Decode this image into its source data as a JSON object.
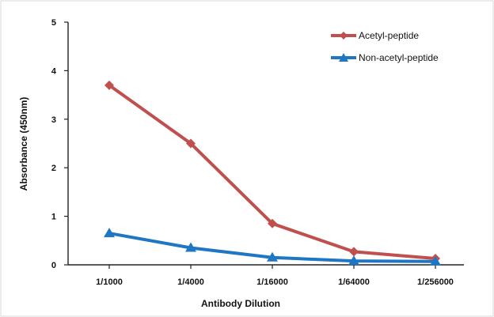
{
  "chart_data": {
    "type": "line",
    "categories": [
      "1/1000",
      "1/4000",
      "1/16000",
      "1/64000",
      "1/256000"
    ],
    "series": [
      {
        "name": "Acetyl-peptide",
        "values": [
          3.7,
          2.5,
          0.85,
          0.27,
          0.13
        ],
        "color": "#c0504d",
        "marker": "diamond"
      },
      {
        "name": "Non-acetyl-peptide",
        "values": [
          0.65,
          0.35,
          0.15,
          0.08,
          0.07
        ],
        "color": "#1f77c4",
        "marker": "triangle"
      }
    ],
    "yticks": [
      "0",
      "1",
      "2",
      "3",
      "4",
      "5"
    ],
    "xlabel": "Antibody Dilution",
    "ylabel": "Absorbance (450nm)",
    "ylim": [
      0,
      5
    ],
    "grid": false,
    "legend_position": "top-right"
  }
}
